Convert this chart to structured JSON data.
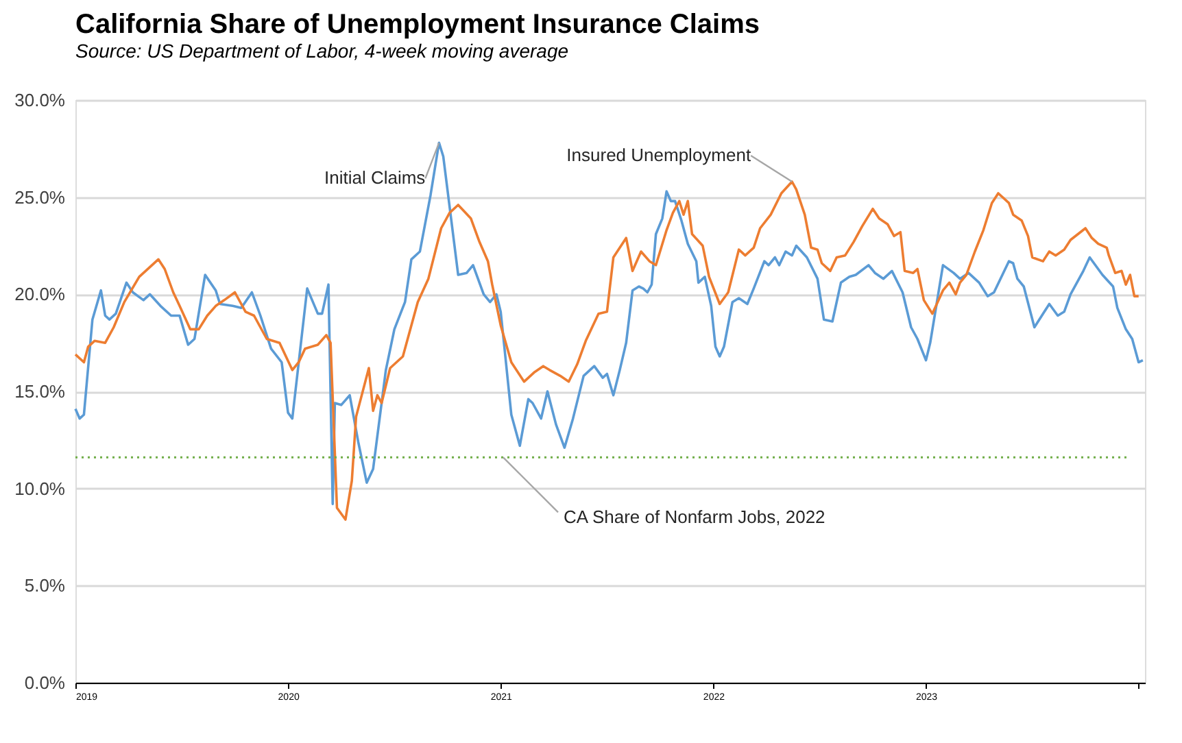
{
  "chart_data": {
    "type": "line",
    "title": "California Share of Unemployment Insurance Claims",
    "subtitle": "Source:  US Department of Labor, 4-week moving average",
    "xlim": [
      2019,
      2024.03
    ],
    "xticks": [
      2019,
      2020,
      2021,
      2022,
      2023,
      {
        "value": 2024,
        "label": null
      }
    ],
    "ylim": [
      0,
      30
    ],
    "yticks": [
      {
        "value": 0,
        "label": "0.0%"
      },
      {
        "value": 5,
        "label": "5.0%"
      },
      {
        "value": 10,
        "label": "10.0%"
      },
      {
        "value": 15,
        "label": "15.0%"
      },
      {
        "value": 20,
        "label": "20.0%"
      },
      {
        "value": 25,
        "label": "25.0%"
      },
      {
        "value": 30,
        "label": "30.0%"
      }
    ],
    "grid": "y",
    "legend": false,
    "line_style": "solid",
    "marker": "none",
    "ref_lines": [
      {
        "axis": "y",
        "value": 11.6,
        "label": "CA Share of Nonfarm Jobs, 2022",
        "color": "#70ad47",
        "line_style": "dotted"
      }
    ],
    "series": [
      {
        "name": "Initial Claims",
        "color": "#5b9bd5",
        "x": [
          2019.0,
          2019.02,
          2019.04,
          2019.08,
          2019.12,
          2019.14,
          2019.16,
          2019.19,
          2019.24,
          2019.27,
          2019.32,
          2019.35,
          2019.4,
          2019.45,
          2019.49,
          2019.53,
          2019.56,
          2019.61,
          2019.66,
          2019.68,
          2019.74,
          2019.78,
          2019.83,
          2019.87,
          2019.92,
          2019.97,
          2020.0,
          2020.02,
          2020.09,
          2020.14,
          2020.16,
          2020.19,
          2020.21,
          2020.22,
          2020.25,
          2020.29,
          2020.33,
          2020.37,
          2020.4,
          2020.46,
          2020.5,
          2020.55,
          2020.58,
          2020.62,
          2020.67,
          2020.71,
          2020.73,
          2020.8,
          2020.84,
          2020.87,
          2020.92,
          2020.95,
          2020.98,
          2021.0,
          2021.02,
          2021.05,
          2021.09,
          2021.13,
          2021.15,
          2021.19,
          2021.22,
          2021.26,
          2021.3,
          2021.34,
          2021.39,
          2021.44,
          2021.48,
          2021.5,
          2021.53,
          2021.56,
          2021.59,
          2021.62,
          2021.65,
          2021.67,
          2021.69,
          2021.71,
          2021.73,
          2021.76,
          2021.78,
          2021.8,
          2021.82,
          2021.85,
          2021.88,
          2021.92,
          2021.93,
          2021.96,
          2021.99,
          2022.01,
          2022.03,
          2022.05,
          2022.09,
          2022.12,
          2022.16,
          2022.19,
          2022.24,
          2022.26,
          2022.29,
          2022.31,
          2022.34,
          2022.37,
          2022.39,
          2022.44,
          2022.49,
          2022.52,
          2022.56,
          2022.6,
          2022.64,
          2022.67,
          2022.73,
          2022.76,
          2022.8,
          2022.84,
          2022.89,
          2022.93,
          2022.96,
          2023.0,
          2023.02,
          2023.08,
          2023.13,
          2023.16,
          2023.2,
          2023.25,
          2023.29,
          2023.32,
          2023.39,
          2023.41,
          2023.43,
          2023.46,
          2023.51,
          2023.58,
          2023.62,
          2023.65,
          2023.68,
          2023.74,
          2023.77,
          2023.83,
          2023.88,
          2023.9,
          2023.94,
          2023.97,
          2024.0,
          2024.02
        ],
        "values": [
          14.1,
          13.6,
          13.8,
          18.7,
          20.2,
          18.9,
          18.7,
          19.0,
          20.6,
          20.1,
          19.7,
          20.0,
          19.4,
          18.9,
          18.9,
          17.4,
          17.7,
          21.0,
          20.2,
          19.5,
          19.4,
          19.3,
          20.1,
          18.9,
          17.2,
          16.5,
          13.9,
          13.6,
          20.3,
          19.0,
          19.0,
          20.5,
          9.2,
          14.4,
          14.3,
          14.8,
          12.4,
          10.3,
          11.0,
          16.1,
          18.2,
          19.6,
          21.8,
          22.2,
          25.1,
          27.8,
          27.1,
          21.0,
          21.1,
          21.5,
          20.0,
          19.6,
          20.0,
          19.1,
          17.0,
          13.8,
          12.2,
          14.6,
          14.4,
          13.6,
          15.0,
          13.3,
          12.1,
          13.6,
          15.8,
          16.3,
          15.7,
          15.9,
          14.8,
          16.1,
          17.5,
          20.2,
          20.4,
          20.3,
          20.1,
          20.5,
          23.1,
          23.9,
          25.3,
          24.8,
          24.8,
          23.8,
          22.6,
          21.7,
          20.6,
          20.9,
          19.4,
          17.3,
          16.8,
          17.3,
          19.6,
          19.8,
          19.5,
          20.3,
          21.7,
          21.5,
          21.9,
          21.5,
          22.2,
          22.0,
          22.5,
          21.9,
          20.8,
          18.7,
          18.6,
          20.6,
          20.9,
          21.0,
          21.5,
          21.1,
          20.8,
          21.2,
          20.1,
          18.3,
          17.7,
          16.6,
          17.5,
          21.5,
          21.1,
          20.8,
          21.1,
          20.6,
          19.9,
          20.1,
          21.7,
          21.6,
          20.8,
          20.4,
          18.3,
          19.5,
          18.9,
          19.1,
          20.0,
          21.2,
          21.9,
          21.0,
          20.4,
          19.3,
          18.2,
          17.7,
          16.5,
          16.6
        ]
      },
      {
        "name": "Insured Unemployment",
        "color": "#ed7d31",
        "x": [
          2019.0,
          2019.04,
          2019.06,
          2019.09,
          2019.14,
          2019.18,
          2019.23,
          2019.3,
          2019.33,
          2019.39,
          2019.42,
          2019.46,
          2019.49,
          2019.54,
          2019.58,
          2019.62,
          2019.66,
          2019.7,
          2019.75,
          2019.8,
          2019.84,
          2019.9,
          2019.96,
          2020.02,
          2020.05,
          2020.08,
          2020.14,
          2020.18,
          2020.2,
          2020.23,
          2020.27,
          2020.3,
          2020.32,
          2020.38,
          2020.4,
          2020.42,
          2020.44,
          2020.48,
          2020.54,
          2020.61,
          2020.66,
          2020.72,
          2020.76,
          2020.8,
          2020.86,
          2020.9,
          2020.94,
          2020.96,
          2021.0,
          2021.05,
          2021.11,
          2021.16,
          2021.2,
          2021.23,
          2021.28,
          2021.32,
          2021.36,
          2021.4,
          2021.46,
          2021.5,
          2021.53,
          2021.59,
          2021.62,
          2021.66,
          2021.7,
          2021.73,
          2021.78,
          2021.81,
          2021.84,
          2021.86,
          2021.88,
          2021.9,
          2021.95,
          2021.98,
          2022.03,
          2022.07,
          2022.12,
          2022.15,
          2022.19,
          2022.22,
          2022.27,
          2022.32,
          2022.37,
          2022.39,
          2022.43,
          2022.46,
          2022.49,
          2022.51,
          2022.55,
          2022.58,
          2022.62,
          2022.66,
          2022.7,
          2022.75,
          2022.78,
          2022.82,
          2022.85,
          2022.88,
          2022.9,
          2022.94,
          2022.96,
          2022.99,
          2023.03,
          2023.08,
          2023.11,
          2023.14,
          2023.16,
          2023.19,
          2023.23,
          2023.27,
          2023.31,
          2023.34,
          2023.39,
          2023.41,
          2023.45,
          2023.48,
          2023.5,
          2023.55,
          2023.58,
          2023.61,
          2023.65,
          2023.68,
          2023.75,
          2023.78,
          2023.81,
          2023.85,
          2023.86,
          2023.89,
          2023.92,
          2023.94,
          2023.96,
          2023.98,
          2024.0
        ],
        "values": [
          16.9,
          16.5,
          17.3,
          17.6,
          17.5,
          18.3,
          19.6,
          20.9,
          21.2,
          21.8,
          21.3,
          20.1,
          19.4,
          18.2,
          18.2,
          18.9,
          19.4,
          19.7,
          20.1,
          19.1,
          18.9,
          17.7,
          17.5,
          16.1,
          16.5,
          17.2,
          17.4,
          17.9,
          17.5,
          9.0,
          8.4,
          10.4,
          13.7,
          16.2,
          14.0,
          14.8,
          14.4,
          16.2,
          16.8,
          19.6,
          20.8,
          23.4,
          24.2,
          24.6,
          23.9,
          22.7,
          21.7,
          20.5,
          18.4,
          16.5,
          15.5,
          16.0,
          16.3,
          16.1,
          15.8,
          15.5,
          16.4,
          17.6,
          19.0,
          19.1,
          21.9,
          22.9,
          21.2,
          22.2,
          21.7,
          21.5,
          23.3,
          24.2,
          24.8,
          24.1,
          24.8,
          23.1,
          22.5,
          20.9,
          19.5,
          20.1,
          22.3,
          22.0,
          22.4,
          23.4,
          24.1,
          25.2,
          25.8,
          25.4,
          24.1,
          22.4,
          22.3,
          21.6,
          21.2,
          21.9,
          22.0,
          22.7,
          23.5,
          24.4,
          23.9,
          23.6,
          23.0,
          23.2,
          21.2,
          21.1,
          21.3,
          19.7,
          19.0,
          20.2,
          20.6,
          20.0,
          20.6,
          21.0,
          22.2,
          23.3,
          24.7,
          25.2,
          24.7,
          24.1,
          23.8,
          23.0,
          21.9,
          21.7,
          22.2,
          22.0,
          22.3,
          22.8,
          23.4,
          22.9,
          22.6,
          22.4,
          22.0,
          21.1,
          21.2,
          20.5,
          21.0,
          19.9,
          19.9
        ]
      }
    ]
  }
}
